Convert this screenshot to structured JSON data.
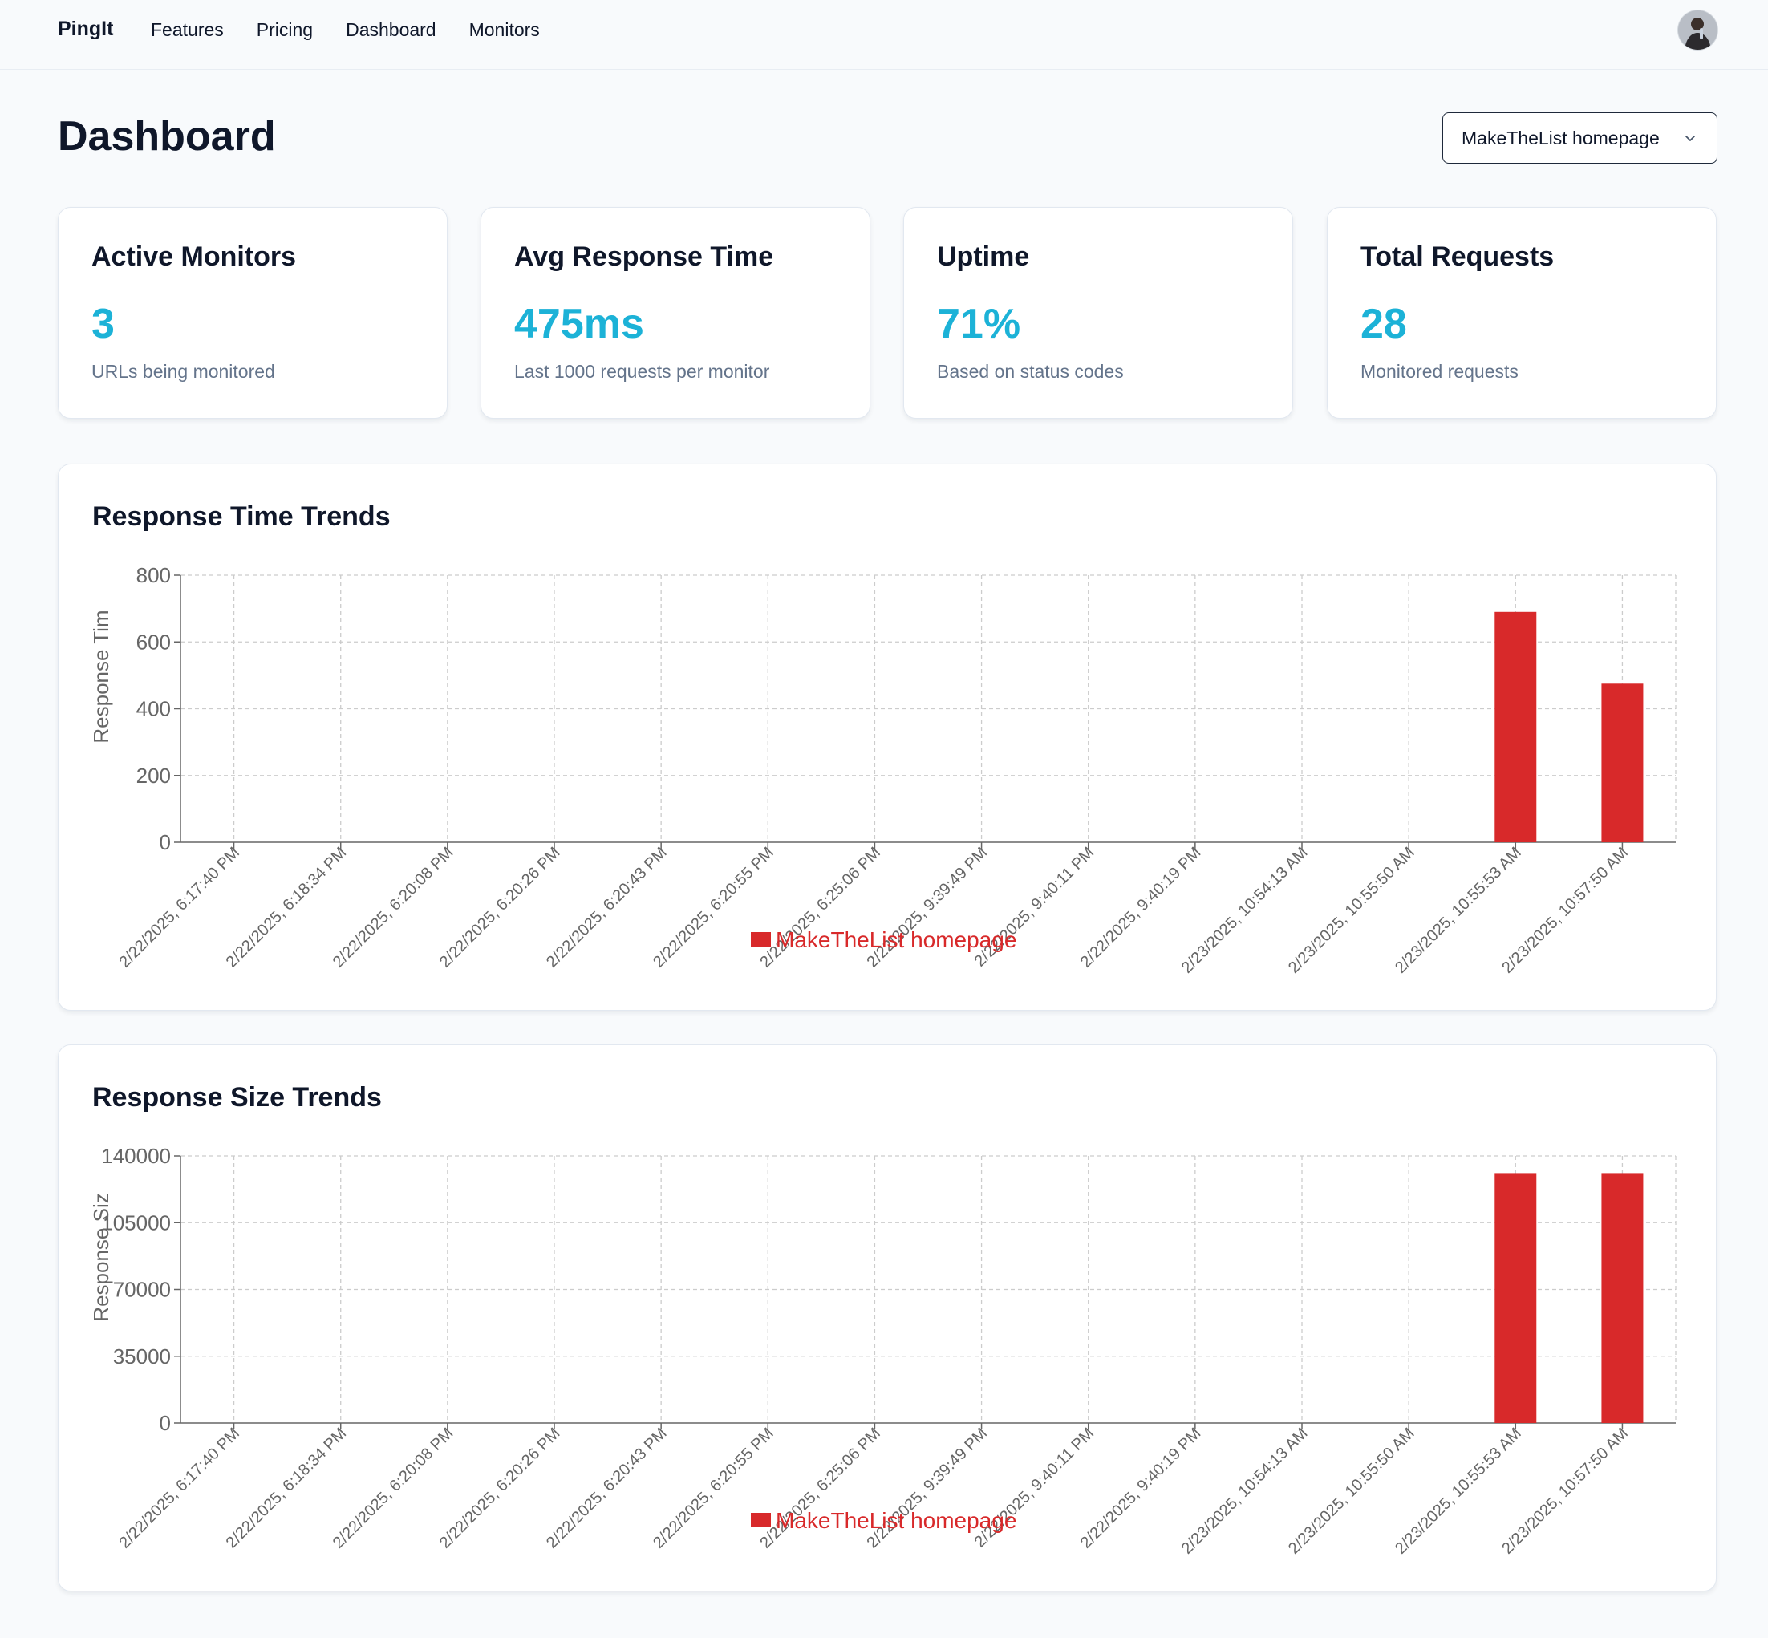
{
  "nav": {
    "brand": "PingIt",
    "links": [
      "Features",
      "Pricing",
      "Dashboard",
      "Monitors"
    ]
  },
  "page": {
    "title": "Dashboard",
    "selected_monitor": "MakeTheList homepage"
  },
  "stats": [
    {
      "title": "Active Monitors",
      "value": "3",
      "subtitle": "URLs being monitored"
    },
    {
      "title": "Avg Response Time",
      "value": "475ms",
      "subtitle": "Last 1000 requests per monitor"
    },
    {
      "title": "Uptime",
      "value": "71%",
      "subtitle": "Based on status codes"
    },
    {
      "title": "Total Requests",
      "value": "28",
      "subtitle": "Monitored requests"
    }
  ],
  "colors": {
    "accent": "#1cb2d7",
    "bar": "#d8292a",
    "grid": "#cccccc",
    "tick_text": "#666666"
  },
  "chart_data": [
    {
      "type": "bar",
      "title": "Response Time Trends",
      "ylabel": "Response Tim",
      "xlabel": "",
      "ylim": [
        0,
        800
      ],
      "yticks": [
        "0",
        "200",
        "400",
        "600",
        "800"
      ],
      "legend": "bottom-center",
      "grid": true,
      "categories": [
        "2/22/2025, 6:17:40 PM",
        "2/22/2025, 6:18:34 PM",
        "2/22/2025, 6:20:08 PM",
        "2/22/2025, 6:20:26 PM",
        "2/22/2025, 6:20:43 PM",
        "2/22/2025, 6:20:55 PM",
        "2/22/2025, 6:25:06 PM",
        "2/22/2025, 9:39:49 PM",
        "2/22/2025, 9:40:11 PM",
        "2/22/2025, 9:40:19 PM",
        "2/23/2025, 10:54:13 AM",
        "2/23/2025, 10:55:50 AM",
        "2/23/2025, 10:55:53 AM",
        "2/23/2025, 10:57:50 AM"
      ],
      "series": [
        {
          "name": "MakeTheList homepage",
          "values": [
            0,
            0,
            0,
            0,
            0,
            0,
            0,
            0,
            0,
            0,
            0,
            0,
            690,
            475
          ]
        }
      ]
    },
    {
      "type": "bar",
      "title": "Response Size Trends",
      "ylabel": "Response Siz",
      "xlabel": "",
      "ylim": [
        0,
        140000
      ],
      "yticks": [
        "0",
        "35000",
        "70000",
        "105000",
        "140000"
      ],
      "legend": "bottom-center",
      "grid": true,
      "categories": [
        "2/22/2025, 6:17:40 PM",
        "2/22/2025, 6:18:34 PM",
        "2/22/2025, 6:20:08 PM",
        "2/22/2025, 6:20:26 PM",
        "2/22/2025, 6:20:43 PM",
        "2/22/2025, 6:20:55 PM",
        "2/22/2025, 6:25:06 PM",
        "2/22/2025, 9:39:49 PM",
        "2/22/2025, 9:40:11 PM",
        "2/22/2025, 9:40:19 PM",
        "2/23/2025, 10:54:13 AM",
        "2/23/2025, 10:55:50 AM",
        "2/23/2025, 10:55:53 AM",
        "2/23/2025, 10:57:50 AM"
      ],
      "series": [
        {
          "name": "MakeTheList homepage",
          "values": [
            0,
            0,
            0,
            0,
            0,
            0,
            0,
            0,
            0,
            0,
            0,
            0,
            131000,
            131000
          ]
        }
      ]
    }
  ]
}
